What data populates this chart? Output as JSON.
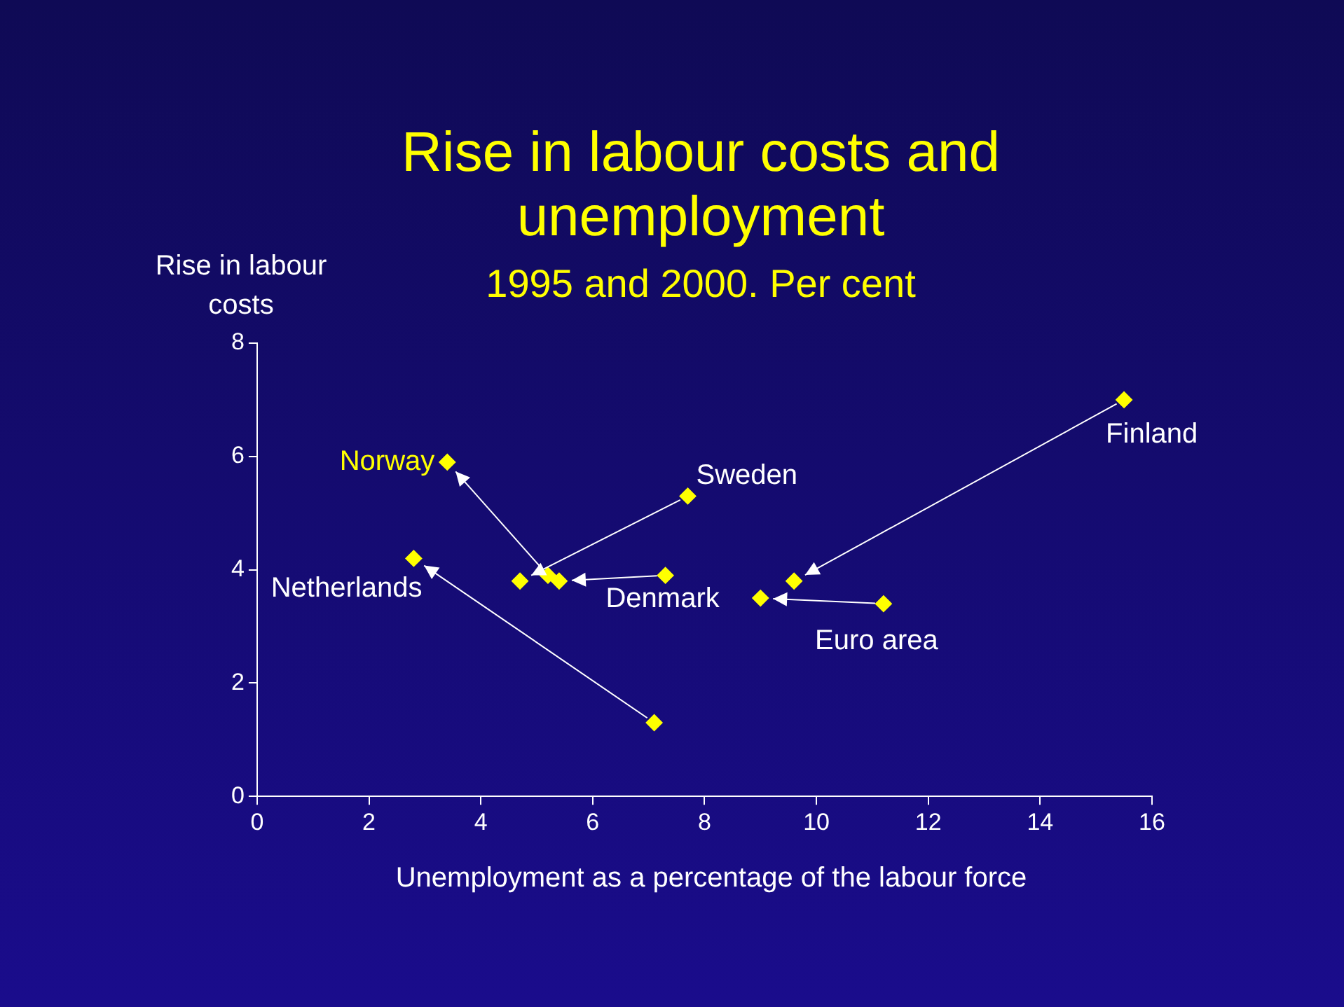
{
  "chart_data": {
    "type": "scatter",
    "title": "Rise in labour costs and unemployment",
    "subtitle": "1995 and 2000. Per cent",
    "xlabel": "Unemployment as a percentage of the labour force",
    "ylabel": "Rise in labour costs",
    "marker": "diamond",
    "xlim": [
      0,
      16
    ],
    "xticks": [
      0,
      2,
      4,
      6,
      8,
      10,
      12,
      14,
      16
    ],
    "ylim": [
      0,
      8
    ],
    "yticks": [
      0,
      2,
      4,
      6,
      8
    ],
    "series": [
      {
        "name": "Norway",
        "color": "#ffff00",
        "x": [
          5.2,
          3.4
        ],
        "values": [
          3.9,
          5.9
        ]
      },
      {
        "name": "Sweden",
        "color": "#ffff00",
        "x": [
          7.7,
          4.7
        ],
        "values": [
          5.3,
          3.8
        ]
      },
      {
        "name": "Denmark",
        "color": "#ffff00",
        "x": [
          7.3,
          5.4
        ],
        "values": [
          3.9,
          3.8
        ]
      },
      {
        "name": "Netherlands",
        "color": "#ffff00",
        "x": [
          7.1,
          2.8
        ],
        "values": [
          1.3,
          4.2
        ]
      },
      {
        "name": "Finland",
        "color": "#ffff00",
        "x": [
          15.5,
          9.6
        ],
        "values": [
          7.0,
          3.8
        ]
      },
      {
        "name": "Euro area",
        "color": "#ffff00",
        "x": [
          11.2,
          9.0
        ],
        "values": [
          3.4,
          3.5
        ]
      }
    ]
  }
}
